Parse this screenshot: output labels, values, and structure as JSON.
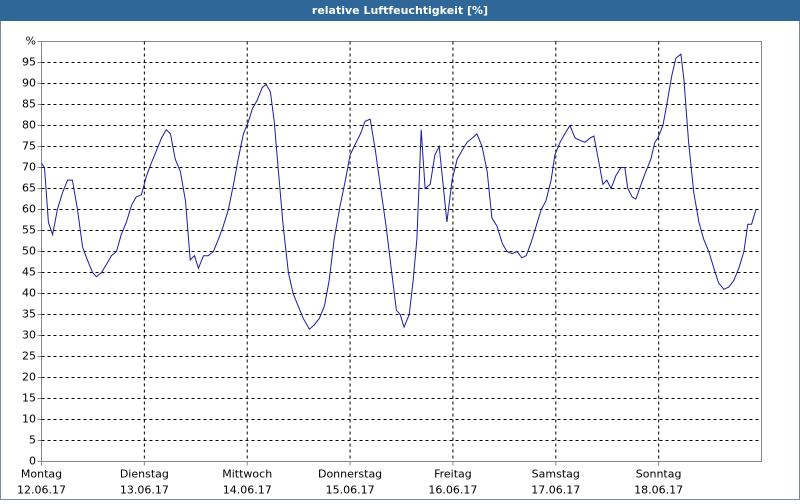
{
  "chart_data": {
    "type": "line",
    "title": "relative Luftfeuchtigkeit [%]",
    "x": [
      0,
      0.7,
      1.6,
      2.6,
      3.7,
      4.9,
      6.1,
      7.2,
      8.4,
      9.6,
      10.7,
      11.9,
      12.8,
      14.0,
      15.2,
      16.3,
      17.5,
      18.6,
      19.8,
      21.0,
      22.1,
      23.3,
      24.5,
      25.6,
      26.8,
      28.0,
      29.1,
      30.1,
      31.2,
      32.4,
      33.6,
      34.7,
      35.7,
      36.6,
      37.8,
      38.9,
      40.1,
      41.3,
      42.4,
      43.6,
      44.8,
      45.9,
      47.1,
      48.3,
      49.2,
      50.3,
      51.5,
      52.4,
      53.4,
      54.3,
      55.2,
      56.4,
      57.6,
      58.7,
      59.9,
      61.1,
      62.5,
      63.6,
      64.8,
      66.0,
      67.1,
      68.3,
      69.7,
      70.9,
      72.0,
      73.2,
      74.4,
      75.5,
      76.7,
      77.9,
      79.0,
      80.4,
      81.6,
      82.8,
      83.7,
      84.6,
      85.8,
      86.7,
      87.6,
      88.6,
      89.5,
      90.7,
      91.8,
      92.8,
      93.7,
      94.6,
      95.8,
      97.0,
      98.1,
      99.3,
      100.5,
      101.6,
      102.8,
      104.0,
      105.1,
      106.3,
      107.5,
      108.6,
      109.8,
      111.0,
      112.1,
      113.1,
      114.2,
      115.4,
      116.6,
      117.7,
      118.9,
      119.8,
      121.0,
      122.1,
      123.3,
      124.5,
      125.6,
      126.8,
      128.0,
      128.9,
      130.1,
      131.0,
      131.9,
      132.9,
      134.0,
      135.2,
      136.1,
      136.8,
      137.8,
      138.7,
      139.9,
      141.0,
      142.2,
      143.1,
      143.8,
      145.0,
      145.9,
      147.1,
      148.0,
      149.2,
      149.9,
      151.0,
      152.2,
      153.4,
      154.5,
      155.7,
      156.9,
      158.0,
      159.2,
      160.3,
      161.5,
      162.7,
      163.9,
      164.8,
      165.7,
      166.7
    ],
    "series": [
      {
        "name": "relative Luftfeuchtigkeit",
        "color": "#1c1ca0",
        "values": [
          71,
          70,
          57,
          54,
          60,
          64,
          67,
          67,
          60,
          51,
          48,
          45,
          44,
          45,
          47,
          49,
          50,
          54,
          57,
          61,
          63,
          63.5,
          68,
          71,
          74,
          77,
          79,
          78,
          72,
          69,
          62,
          48,
          49,
          46,
          49,
          49,
          50,
          53,
          56,
          60,
          66,
          72,
          78,
          81,
          84,
          86,
          89,
          89.8,
          88,
          81,
          70,
          56,
          45,
          40,
          37,
          34,
          31.5,
          32.5,
          34,
          37,
          43,
          53,
          61,
          67,
          73,
          75.5,
          78,
          81,
          81.5,
          74,
          66,
          56,
          46,
          36,
          35,
          32,
          35,
          43,
          53,
          79,
          65,
          66,
          73,
          75,
          66,
          57,
          67,
          72,
          74,
          76,
          77,
          78,
          75,
          69,
          58,
          56,
          52,
          50,
          49.5,
          50,
          48.5,
          49,
          52,
          56,
          60,
          62,
          67,
          73,
          76,
          78,
          80,
          77,
          76.5,
          76,
          77,
          77.5,
          71,
          66,
          67,
          65,
          68,
          70,
          70,
          65,
          63,
          62.5,
          66,
          69,
          72,
          76,
          77,
          80,
          85,
          92,
          96,
          97,
          91,
          76,
          64,
          57,
          53,
          50,
          46,
          42.5,
          41,
          41.5,
          43,
          46,
          50,
          56.5,
          56.5,
          60
        ]
      }
    ],
    "xlim": [
      0,
      168
    ],
    "xticks": [
      {
        "value": 0,
        "label": "Montag"
      },
      {
        "value": 24,
        "label": "Dienstag"
      },
      {
        "value": 48,
        "label": "Mittwoch"
      },
      {
        "value": 72,
        "label": "Donnerstag"
      },
      {
        "value": 96,
        "label": "Freitag"
      },
      {
        "value": 120,
        "label": "Samstag"
      },
      {
        "value": 144,
        "label": "Sonntag"
      }
    ],
    "xtick_dates": [
      "12.06.17",
      "13.06.17",
      "14.06.17",
      "15.06.17",
      "16.06.17",
      "17.06.17",
      "18.06.17"
    ],
    "ylim": [
      0,
      100
    ],
    "yticks": [
      0,
      5,
      10,
      15,
      20,
      25,
      30,
      35,
      40,
      45,
      50,
      55,
      60,
      65,
      70,
      75,
      80,
      85,
      90,
      95,
      {
        "value": 100,
        "label": "%"
      }
    ],
    "grid": true
  }
}
